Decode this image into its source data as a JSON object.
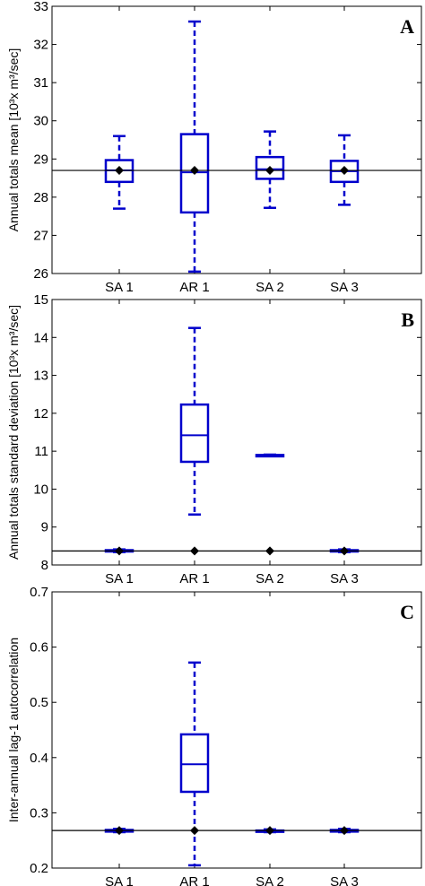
{
  "chart_data": [
    {
      "type": "box",
      "panel_label": "A",
      "ylabel": "Annual totals mean [10³x m³/sec]",
      "ylim": [
        26,
        33
      ],
      "yticks": [
        26,
        27,
        28,
        29,
        30,
        31,
        32,
        33
      ],
      "categories": [
        "SA 1",
        "AR 1",
        "SA 2",
        "SA 3"
      ],
      "reference_line": 28.7,
      "boxes": [
        {
          "name": "SA 1",
          "whisker_low": 27.7,
          "q1": 28.4,
          "median": 28.7,
          "q3": 28.97,
          "whisker_high": 29.6,
          "mean": 28.7
        },
        {
          "name": "AR 1",
          "whisker_low": 26.05,
          "q1": 27.6,
          "median": 28.65,
          "q3": 29.65,
          "whisker_high": 32.6,
          "mean": 28.7
        },
        {
          "name": "SA 2",
          "whisker_low": 27.72,
          "q1": 28.48,
          "median": 28.73,
          "q3": 29.05,
          "whisker_high": 29.72,
          "mean": 28.7
        },
        {
          "name": "SA 3",
          "whisker_low": 27.8,
          "q1": 28.4,
          "median": 28.68,
          "q3": 28.95,
          "whisker_high": 29.62,
          "mean": 28.7
        }
      ]
    },
    {
      "type": "box",
      "panel_label": "B",
      "ylabel": "Annual totals standard deviation [10³x m³/sec]",
      "ylim": [
        8,
        15
      ],
      "yticks": [
        8,
        9,
        10,
        11,
        12,
        13,
        14,
        15
      ],
      "categories": [
        "SA 1",
        "AR 1",
        "SA 2",
        "SA 3"
      ],
      "reference_line": 8.37,
      "boxes": [
        {
          "name": "SA 1",
          "whisker_low": 8.34,
          "q1": 8.36,
          "median": 8.37,
          "q3": 8.39,
          "whisker_high": 8.41,
          "mean": 8.37
        },
        {
          "name": "AR 1",
          "whisker_low": 9.33,
          "q1": 10.72,
          "median": 11.42,
          "q3": 12.23,
          "whisker_high": 14.25,
          "mean": 8.37
        },
        {
          "name": "SA 2",
          "whisker_low": 10.87,
          "q1": 10.88,
          "median": 10.89,
          "q3": 10.9,
          "whisker_high": 10.91,
          "mean": 8.37
        },
        {
          "name": "SA 3",
          "whisker_low": 8.34,
          "q1": 8.36,
          "median": 8.37,
          "q3": 8.39,
          "whisker_high": 8.41,
          "mean": 8.37
        }
      ]
    },
    {
      "type": "box",
      "panel_label": "C",
      "ylabel": "Inter-annual lag-1 autocorrelation",
      "ylim": [
        0.2,
        0.7
      ],
      "yticks": [
        0.2,
        0.3,
        0.4,
        0.5,
        0.6,
        0.7
      ],
      "categories": [
        "SA 1",
        "AR 1",
        "SA 2",
        "SA 3"
      ],
      "reference_line": 0.268,
      "boxes": [
        {
          "name": "SA 1",
          "whisker_low": 0.265,
          "q1": 0.266,
          "median": 0.267,
          "q3": 0.269,
          "whisker_high": 0.271,
          "mean": 0.268
        },
        {
          "name": "AR 1",
          "whisker_low": 0.205,
          "q1": 0.338,
          "median": 0.388,
          "q3": 0.442,
          "whisker_high": 0.572,
          "mean": 0.268
        },
        {
          "name": "SA 2",
          "whisker_low": 0.265,
          "q1": 0.266,
          "median": 0.267,
          "q3": 0.268,
          "whisker_high": 0.27,
          "mean": 0.268
        },
        {
          "name": "SA 3",
          "whisker_low": 0.265,
          "q1": 0.266,
          "median": 0.268,
          "q3": 0.269,
          "whisker_high": 0.271,
          "mean": 0.268
        }
      ]
    }
  ]
}
